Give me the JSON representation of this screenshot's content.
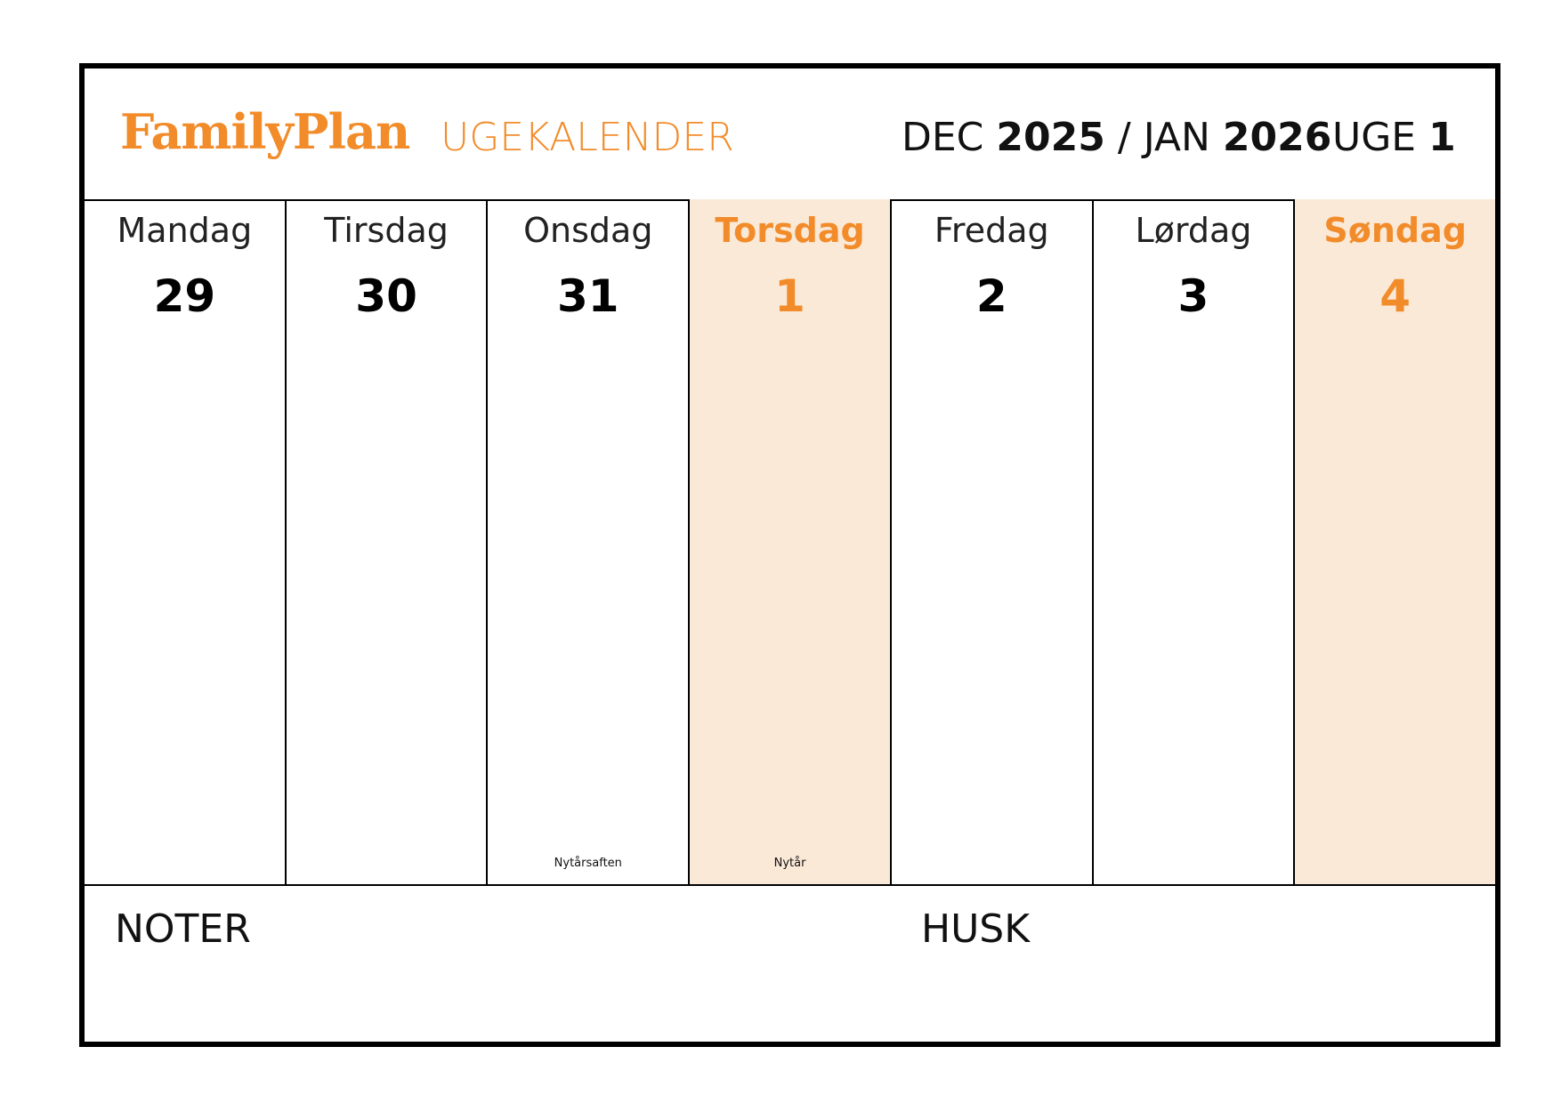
{
  "header": {
    "logo": "FamilyPlan",
    "subtitle": "UGEKALENDER",
    "period_month_from": "DEC",
    "period_year_from": "2025",
    "period_separator": "/",
    "period_month_to": "JAN",
    "period_year_to": "2026",
    "week_label": "UGE",
    "week_number": "1"
  },
  "days": [
    {
      "name": "Mandag",
      "date": "29",
      "holiday": "",
      "highlight": false
    },
    {
      "name": "Tirsdag",
      "date": "30",
      "holiday": "",
      "highlight": false
    },
    {
      "name": "Onsdag",
      "date": "31",
      "holiday": "Nytårsaften",
      "highlight": false
    },
    {
      "name": "Torsdag",
      "date": "1",
      "holiday": "Nytår",
      "highlight": true
    },
    {
      "name": "Fredag",
      "date": "2",
      "holiday": "",
      "highlight": false
    },
    {
      "name": "Lørdag",
      "date": "3",
      "holiday": "",
      "highlight": false
    },
    {
      "name": "Søndag",
      "date": "4",
      "holiday": "",
      "highlight": true
    }
  ],
  "footer": {
    "notes_label": "NOTER",
    "remember_label": "HUSK"
  },
  "colors": {
    "accent": "#f28c2b",
    "highlight_bg": "#fbe9d8",
    "border": "#000000"
  }
}
